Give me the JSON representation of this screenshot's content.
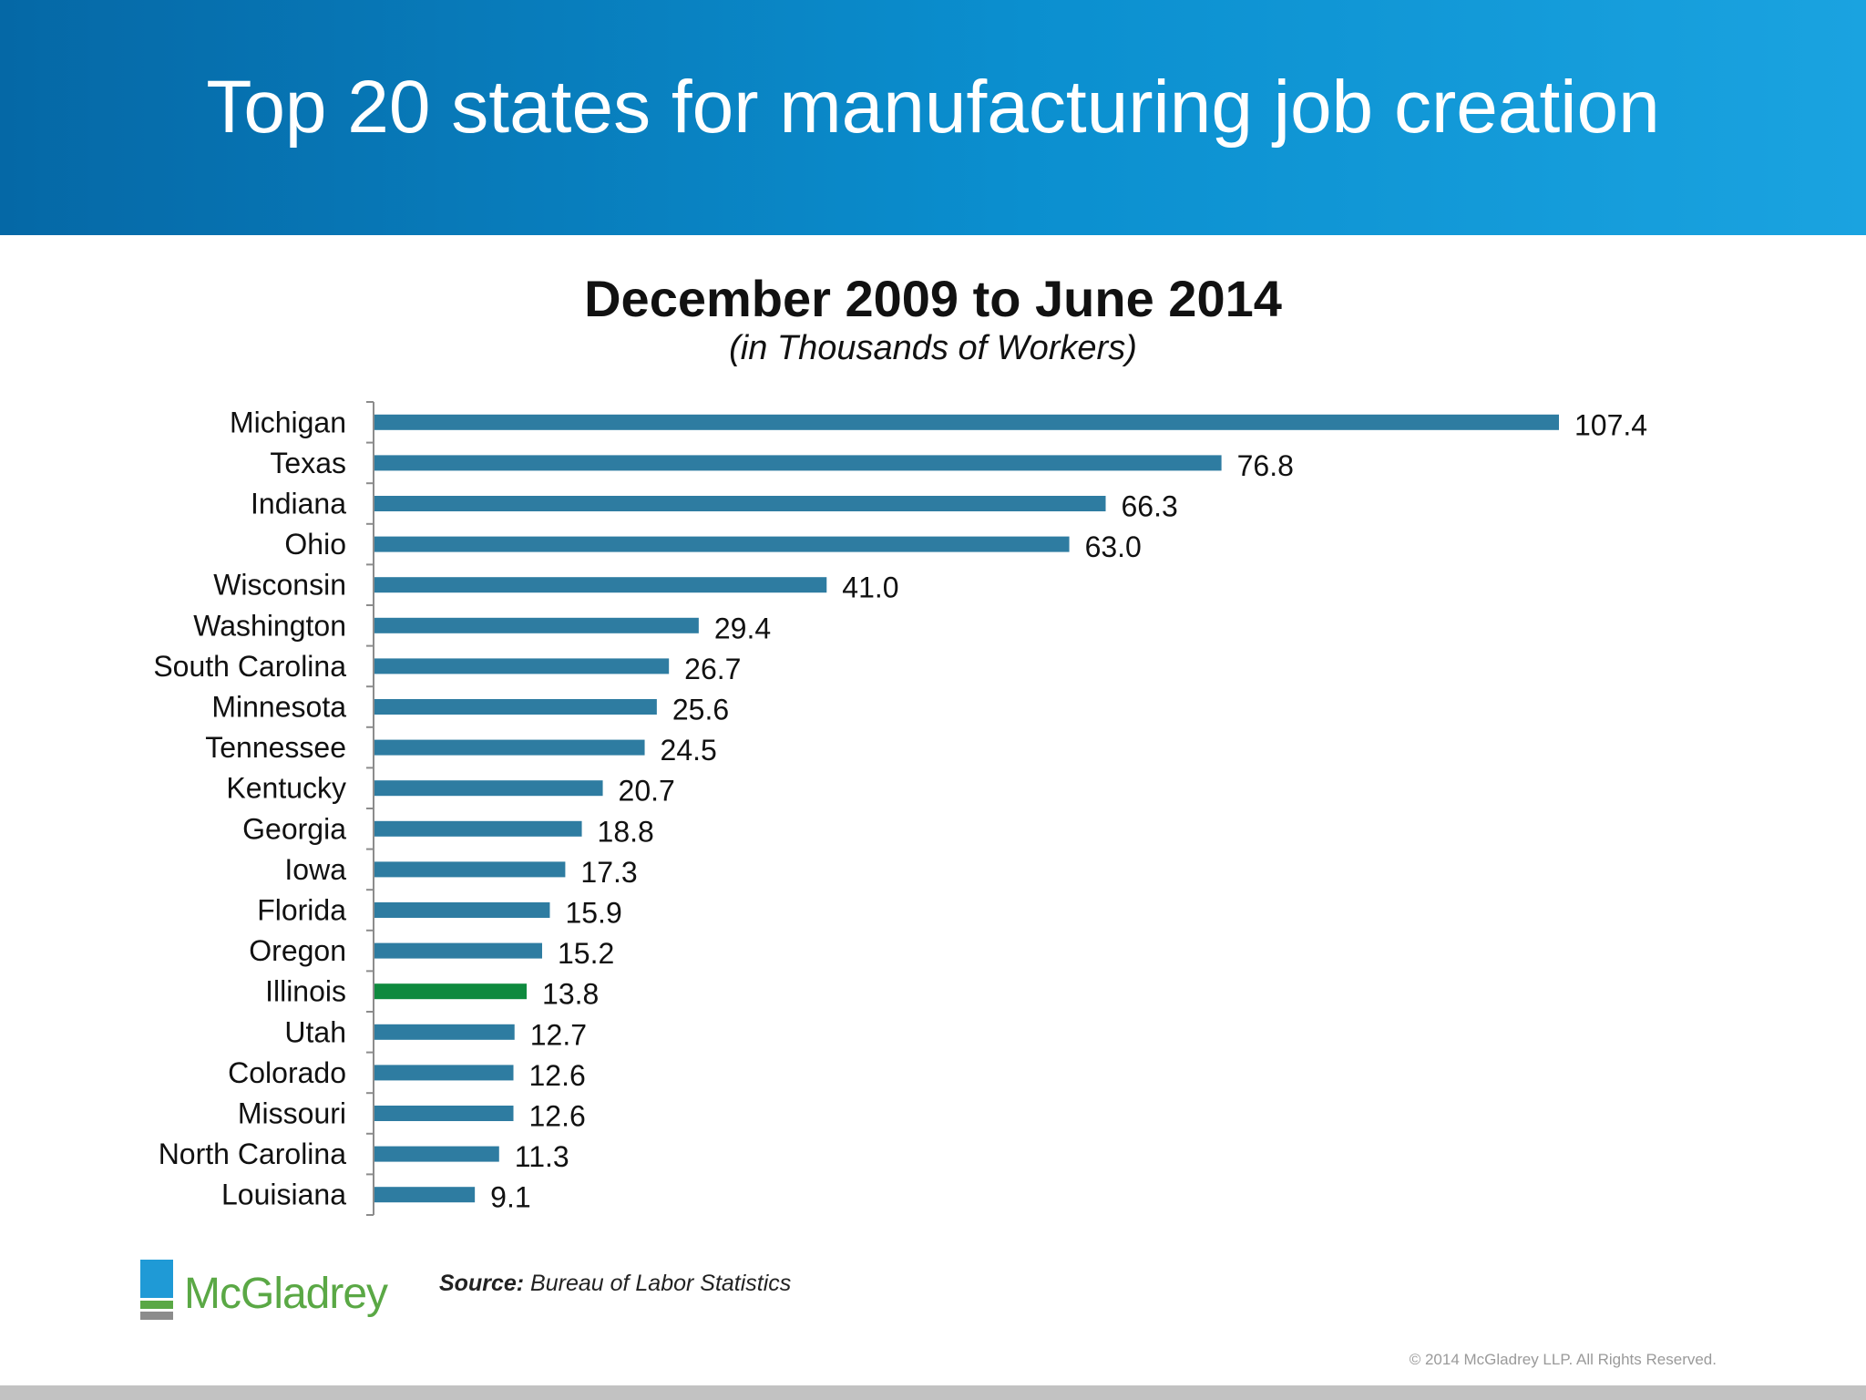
{
  "header": {
    "title": "Top 20 states for manufacturing job creation"
  },
  "chart_data": {
    "type": "bar",
    "orientation": "horizontal",
    "title": "December 2009 to June 2014",
    "subtitle": "(in Thousands of Workers)",
    "categories": [
      "Michigan",
      "Texas",
      "Indiana",
      "Ohio",
      "Wisconsin",
      "Washington",
      "South Carolina",
      "Minnesota",
      "Tennessee",
      "Kentucky",
      "Georgia",
      "Iowa",
      "Florida",
      "Oregon",
      "Illinois",
      "Utah",
      "Colorado",
      "Missouri",
      "North Carolina",
      "Louisiana"
    ],
    "values": [
      107.4,
      76.8,
      66.3,
      63.0,
      41.0,
      29.4,
      26.7,
      25.6,
      24.5,
      20.7,
      18.8,
      17.3,
      15.9,
      15.2,
      13.8,
      12.7,
      12.6,
      12.6,
      11.3,
      9.1
    ],
    "value_labels": [
      "107.4",
      "76.8",
      "66.3",
      "63.0",
      "41.0",
      "29.4",
      "26.7",
      "25.6",
      "24.5",
      "20.7",
      "18.8",
      "17.3",
      "15.9",
      "15.2",
      "13.8",
      "12.7",
      "12.6",
      "12.6",
      "11.3",
      "9.1"
    ],
    "highlight_category": "Illinois",
    "xlim": [
      0,
      107.4
    ],
    "grid": false,
    "colors": {
      "bar": "#2e7ca1",
      "highlight": "#0e8a3e",
      "axis": "#8c8c8c"
    }
  },
  "footer": {
    "logo_text": "McGladrey",
    "source_label": "Source:",
    "source_text": " Bureau of Labor Statistics",
    "copyright": "© 2014 McGladrey LLP. All Rights Reserved."
  },
  "logo_icon": "mcgladrey-logo-icon"
}
